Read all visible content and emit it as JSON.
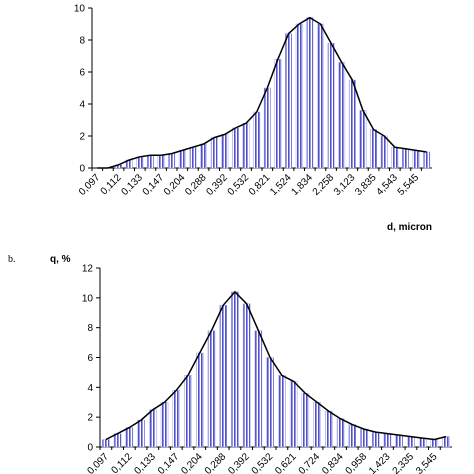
{
  "chart_data": [
    {
      "type": "bar",
      "x_label": "d, micron",
      "categories": [
        "0,097",
        null,
        "0,112",
        null,
        "0,133",
        null,
        "0,147",
        null,
        "0,204",
        null,
        "0,288",
        null,
        "0,392",
        null,
        "0,532",
        null,
        "0,821",
        null,
        "1,524",
        null,
        "1,834",
        null,
        "2,258",
        null,
        "3,123",
        null,
        "3,835",
        null,
        "4,543",
        null,
        "5,545",
        null
      ],
      "values": [
        0,
        0,
        0.2,
        0.5,
        0.7,
        0.8,
        0.8,
        0.9,
        1.1,
        1.3,
        1.5,
        1.9,
        2.1,
        2.5,
        2.8,
        3.5,
        5.0,
        6.8,
        8.4,
        9.0,
        9.4,
        9.0,
        7.8,
        6.6,
        5.5,
        3.6,
        2.4,
        2.0,
        1.3,
        1.2,
        1.1,
        1.0
      ],
      "color": "#a3a3e6",
      "line_color": "#000000",
      "ylim": [
        0,
        10
      ],
      "yticks": [
        0,
        2,
        4,
        6,
        8,
        10
      ]
    },
    {
      "type": "bar",
      "panel_label": "b.",
      "y_label": "q, %",
      "categories": [
        "0,097",
        null,
        "0,112",
        null,
        "0,133",
        null,
        "0,147",
        null,
        "0,204",
        null,
        "0,288",
        null,
        "0,392",
        null,
        "0,532",
        null,
        "0,621",
        null,
        "0,724",
        null,
        "0,834",
        null,
        "0,958",
        null,
        "1,423",
        null,
        "2,335",
        null,
        "3,545",
        null
      ],
      "values": [
        0.5,
        0.9,
        1.3,
        1.8,
        2.5,
        3.0,
        3.8,
        4.8,
        6.3,
        7.8,
        9.5,
        10.4,
        9.6,
        7.8,
        6.0,
        4.8,
        4.4,
        3.6,
        3.0,
        2.4,
        1.9,
        1.5,
        1.2,
        1.0,
        0.9,
        0.8,
        0.7,
        0.6,
        0.5,
        0.7
      ],
      "color": "#a3a3e6",
      "line_color": "#000000",
      "ylim": [
        0,
        12
      ],
      "yticks": [
        0,
        2,
        4,
        6,
        8,
        10,
        12
      ]
    }
  ]
}
